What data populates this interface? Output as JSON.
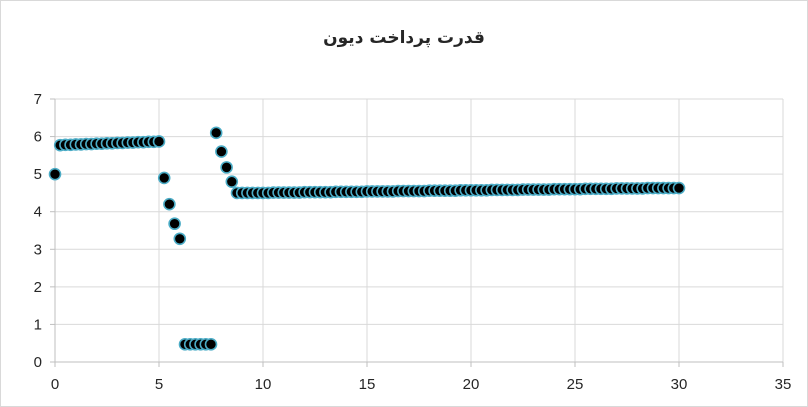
{
  "chart_data": {
    "type": "scatter",
    "title": "قدرت پرداخت دیون",
    "xlabel": "",
    "ylabel": "",
    "xlim": [
      0,
      35
    ],
    "ylim": [
      0,
      7
    ],
    "x_ticks": [
      "0",
      "5",
      "10",
      "15",
      "20",
      "25",
      "30",
      "35"
    ],
    "y_ticks": [
      "0",
      "1",
      "2",
      "3",
      "4",
      "5",
      "6",
      "7"
    ],
    "grid": true,
    "legend": "none",
    "marker_fill": "#000000",
    "marker_edge": "#4bacc6",
    "series": [
      {
        "points": [
          [
            0,
            5.0
          ],
          [
            0.25,
            5.77
          ],
          [
            0.5,
            5.78
          ],
          [
            0.75,
            5.78
          ],
          [
            1.0,
            5.79
          ],
          [
            1.25,
            5.79
          ],
          [
            1.5,
            5.8
          ],
          [
            1.75,
            5.8
          ],
          [
            2.0,
            5.81
          ],
          [
            2.25,
            5.81
          ],
          [
            2.5,
            5.82
          ],
          [
            2.75,
            5.82
          ],
          [
            3.0,
            5.83
          ],
          [
            3.25,
            5.83
          ],
          [
            3.5,
            5.84
          ],
          [
            3.75,
            5.84
          ],
          [
            4.0,
            5.85
          ],
          [
            4.25,
            5.85
          ],
          [
            4.5,
            5.86
          ],
          [
            4.75,
            5.86
          ],
          [
            5.0,
            5.87
          ],
          [
            5.25,
            4.9
          ],
          [
            5.5,
            4.2
          ],
          [
            5.75,
            3.68
          ],
          [
            6.0,
            3.28
          ],
          [
            6.25,
            0.47
          ],
          [
            6.5,
            0.47
          ],
          [
            6.75,
            0.47
          ],
          [
            7.0,
            0.47
          ],
          [
            7.25,
            0.47
          ],
          [
            7.5,
            0.47
          ],
          [
            7.75,
            6.1
          ],
          [
            8.0,
            5.6
          ],
          [
            8.25,
            5.18
          ],
          [
            8.5,
            4.8
          ],
          [
            8.75,
            4.5
          ],
          [
            9.0,
            4.5
          ],
          [
            9.25,
            4.5
          ],
          [
            9.5,
            4.5
          ],
          [
            9.75,
            4.5
          ],
          [
            10.0,
            4.5
          ],
          [
            10.25,
            4.5
          ],
          [
            10.5,
            4.51
          ],
          [
            10.75,
            4.51
          ],
          [
            11.0,
            4.51
          ],
          [
            11.25,
            4.51
          ],
          [
            11.5,
            4.51
          ],
          [
            11.75,
            4.51
          ],
          [
            12.0,
            4.52
          ],
          [
            12.25,
            4.52
          ],
          [
            12.5,
            4.52
          ],
          [
            12.75,
            4.52
          ],
          [
            13.0,
            4.52
          ],
          [
            13.25,
            4.52
          ],
          [
            13.5,
            4.53
          ],
          [
            13.75,
            4.53
          ],
          [
            14.0,
            4.53
          ],
          [
            14.25,
            4.53
          ],
          [
            14.5,
            4.53
          ],
          [
            14.75,
            4.53
          ],
          [
            15.0,
            4.54
          ],
          [
            15.25,
            4.54
          ],
          [
            15.5,
            4.54
          ],
          [
            15.75,
            4.54
          ],
          [
            16.0,
            4.54
          ],
          [
            16.25,
            4.54
          ],
          [
            16.5,
            4.55
          ],
          [
            16.75,
            4.55
          ],
          [
            17.0,
            4.55
          ],
          [
            17.25,
            4.55
          ],
          [
            17.5,
            4.55
          ],
          [
            17.75,
            4.55
          ],
          [
            18.0,
            4.56
          ],
          [
            18.25,
            4.56
          ],
          [
            18.5,
            4.56
          ],
          [
            18.75,
            4.56
          ],
          [
            19.0,
            4.56
          ],
          [
            19.25,
            4.56
          ],
          [
            19.5,
            4.57
          ],
          [
            19.75,
            4.57
          ],
          [
            20.0,
            4.57
          ],
          [
            20.25,
            4.57
          ],
          [
            20.5,
            4.57
          ],
          [
            20.75,
            4.57
          ],
          [
            21.0,
            4.58
          ],
          [
            21.25,
            4.58
          ],
          [
            21.5,
            4.58
          ],
          [
            21.75,
            4.58
          ],
          [
            22.0,
            4.58
          ],
          [
            22.25,
            4.58
          ],
          [
            22.5,
            4.59
          ],
          [
            22.75,
            4.59
          ],
          [
            23.0,
            4.59
          ],
          [
            23.25,
            4.59
          ],
          [
            23.5,
            4.59
          ],
          [
            23.75,
            4.59
          ],
          [
            24.0,
            4.6
          ],
          [
            24.25,
            4.6
          ],
          [
            24.5,
            4.6
          ],
          [
            24.75,
            4.6
          ],
          [
            25.0,
            4.6
          ],
          [
            25.25,
            4.6
          ],
          [
            25.5,
            4.61
          ],
          [
            25.75,
            4.61
          ],
          [
            26.0,
            4.61
          ],
          [
            26.25,
            4.61
          ],
          [
            26.5,
            4.61
          ],
          [
            26.75,
            4.61
          ],
          [
            27.0,
            4.62
          ],
          [
            27.25,
            4.62
          ],
          [
            27.5,
            4.62
          ],
          [
            27.75,
            4.62
          ],
          [
            28.0,
            4.62
          ],
          [
            28.25,
            4.62
          ],
          [
            28.5,
            4.63
          ],
          [
            28.75,
            4.63
          ],
          [
            29.0,
            4.63
          ],
          [
            29.25,
            4.63
          ],
          [
            29.5,
            4.63
          ],
          [
            29.75,
            4.63
          ],
          [
            30.0,
            4.63
          ]
        ]
      }
    ]
  }
}
